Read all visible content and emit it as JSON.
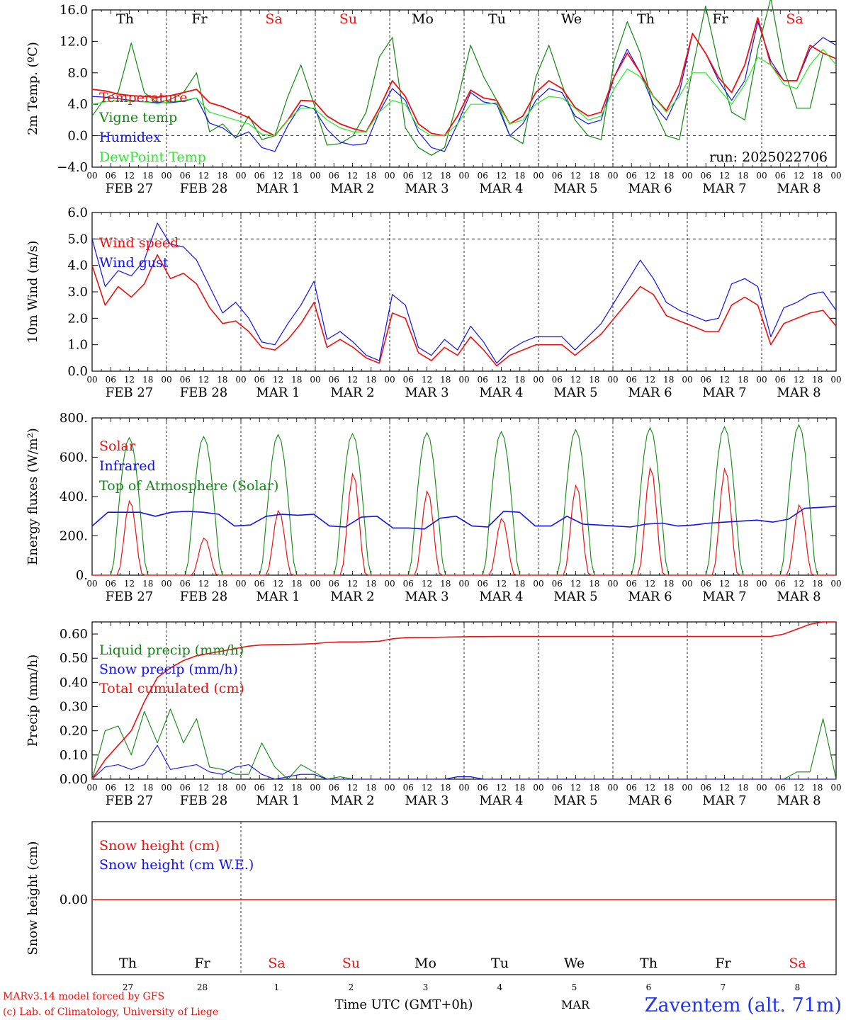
{
  "footer": {
    "model": "MARv3.14 model forced by GFS",
    "credit": "(c) Lab. of Climatology, University of Liege",
    "time_label": "Time UTC (GMT+0h)",
    "month": "MAR",
    "station": "Zaventem (alt. 71m)"
  },
  "colors": {
    "red": "#ee1111",
    "green": "#118811",
    "blue": "#1111ee",
    "lightgreen": "#22ee22"
  },
  "days": {
    "abbr": [
      "Th",
      "Fr",
      "Sa",
      "Su",
      "Mo",
      "Tu",
      "We",
      "Th",
      "Fr",
      "Sa"
    ],
    "weekend": [
      false,
      false,
      true,
      true,
      false,
      false,
      false,
      false,
      false,
      true
    ],
    "dates": [
      "FEB 27",
      "FEB 28",
      "MAR  1",
      "MAR  2",
      "MAR  3",
      "MAR  4",
      "MAR  5",
      "MAR  6",
      "MAR  7",
      "MAR  8"
    ],
    "day_numbers": [
      "27",
      "28",
      "1",
      "2",
      "3",
      "4",
      "5",
      "6",
      "7",
      "8"
    ],
    "hour_ticks": [
      "00",
      "06",
      "12",
      "18"
    ],
    "final_tick": "00"
  },
  "chart_data": [
    {
      "type": "line",
      "ylabel": "2m Temp. (ºC)",
      "ylim": [
        -4,
        16
      ],
      "y_ticks": [
        "−4.0",
        "0.0",
        "4.0",
        "8.0",
        "12.0",
        "16.0"
      ],
      "x_unit": "hours since FEB 27 00 UTC (3-hourly)",
      "annotation": "run: 2025022706",
      "series": [
        {
          "name": "Temperature",
          "color": "#ee1111",
          "values": [
            5.9,
            5.7,
            5.3,
            5.1,
            5.0,
            4.9,
            5.1,
            5.5,
            5.9,
            4.2,
            3.7,
            3.0,
            2.3,
            0.8,
            0.0,
            2.0,
            4.5,
            4.4,
            2.5,
            1.5,
            0.9,
            0.5,
            3.5,
            7.0,
            5.0,
            1.5,
            0.3,
            0.0,
            2.5,
            5.8,
            4.8,
            4.5,
            1.5,
            2.5,
            5.5,
            7.0,
            6.0,
            3.6,
            2.5,
            3.0,
            7.5,
            10.5,
            8.0,
            5.0,
            3.2,
            6.5,
            13.0,
            10.5,
            7.4,
            5.5,
            9.0,
            15.0,
            9.0,
            7.0,
            7.0,
            11.5,
            10.5,
            9.8
          ]
        },
        {
          "name": "Vigne temp",
          "color": "#118811",
          "values": [
            2.5,
            4.8,
            5.5,
            11.8,
            5.5,
            4.2,
            4.6,
            5.5,
            8.0,
            0.5,
            1.5,
            -0.3,
            2.5,
            -0.5,
            0.0,
            5.0,
            9.0,
            4.0,
            -1.2,
            -1.0,
            0.0,
            3.0,
            10.0,
            12.5,
            1.0,
            -1.5,
            -2.5,
            -1.5,
            4.5,
            11.5,
            7.5,
            4.5,
            0.0,
            -1.0,
            7.5,
            11.5,
            6.5,
            2.0,
            0.0,
            -0.5,
            9.5,
            14.5,
            10.5,
            3.5,
            0.0,
            -0.5,
            8.5,
            16.5,
            9.0,
            3.0,
            2.0,
            11.0,
            17.5,
            8.5,
            3.5,
            3.5,
            10.5,
            9.8
          ]
        },
        {
          "name": "Humidex",
          "color": "#1111ee",
          "values": [
            5.0,
            4.9,
            4.7,
            4.5,
            4.3,
            4.2,
            4.2,
            4.4,
            4.8,
            1.6,
            1.0,
            -0.2,
            0.5,
            -1.5,
            -2.0,
            1.3,
            3.9,
            3.4,
            0.8,
            -0.8,
            -1.2,
            -1.0,
            3.0,
            6.0,
            4.5,
            0.5,
            -1.5,
            -2.0,
            1.5,
            5.5,
            4.3,
            4.0,
            0.0,
            1.5,
            4.5,
            6.0,
            5.5,
            2.5,
            1.5,
            2.0,
            7.5,
            11.0,
            8.0,
            4.0,
            2.0,
            5.5,
            13.0,
            10.5,
            7.0,
            4.5,
            7.0,
            14.5,
            9.5,
            7.0,
            7.0,
            11.0,
            12.5,
            11.5
          ]
        },
        {
          "name": "DewPoint Temp",
          "color": "#22ee22",
          "values": [
            4.0,
            4.3,
            4.5,
            4.4,
            4.3,
            4.1,
            4.3,
            4.5,
            4.8,
            3.0,
            2.5,
            2.0,
            1.5,
            0.2,
            0.0,
            2.0,
            3.5,
            3.5,
            2.0,
            1.0,
            0.5,
            0.5,
            3.0,
            4.5,
            4.0,
            1.0,
            0.0,
            0.0,
            1.5,
            4.0,
            4.0,
            4.2,
            1.5,
            2.0,
            4.0,
            5.0,
            4.8,
            3.5,
            2.0,
            2.5,
            6.0,
            8.5,
            7.5,
            5.0,
            3.0,
            5.0,
            8.0,
            8.0,
            6.0,
            4.0,
            6.5,
            10.0,
            9.0,
            6.5,
            6.0,
            9.0,
            11.0,
            9.0
          ]
        }
      ]
    },
    {
      "type": "line",
      "ylabel": "10m Wind (m/s)",
      "ylim": [
        0,
        6
      ],
      "y_ticks": [
        "0.0",
        "1.0",
        "2.0",
        "3.0",
        "4.0",
        "5.0",
        "6.0"
      ],
      "series": [
        {
          "name": "Wind speed",
          "color": "#ee1111",
          "values": [
            4.0,
            2.5,
            3.2,
            2.8,
            3.3,
            4.4,
            3.5,
            3.7,
            3.3,
            2.4,
            1.8,
            1.9,
            1.5,
            0.9,
            0.8,
            1.2,
            1.8,
            2.6,
            0.9,
            1.2,
            0.9,
            0.5,
            0.3,
            2.2,
            2.0,
            0.7,
            0.4,
            0.9,
            0.6,
            1.3,
            0.8,
            0.2,
            0.6,
            0.8,
            1.0,
            1.0,
            1.0,
            0.6,
            1.0,
            1.4,
            2.0,
            2.6,
            3.2,
            2.9,
            2.1,
            1.9,
            1.7,
            1.5,
            1.5,
            2.5,
            2.8,
            2.5,
            1.0,
            1.8,
            2.0,
            2.2,
            2.3,
            1.7
          ]
        },
        {
          "name": "Wind gust",
          "color": "#1111ee",
          "values": [
            5.0,
            3.2,
            3.8,
            3.6,
            4.2,
            5.6,
            4.8,
            4.7,
            4.2,
            3.2,
            2.2,
            2.6,
            2.0,
            1.1,
            1.0,
            1.8,
            2.5,
            3.4,
            1.2,
            1.5,
            1.1,
            0.6,
            0.4,
            2.9,
            2.5,
            0.9,
            0.6,
            1.2,
            0.8,
            1.7,
            1.1,
            0.3,
            0.8,
            1.1,
            1.3,
            1.3,
            1.3,
            0.8,
            1.3,
            1.8,
            2.6,
            3.4,
            4.2,
            3.5,
            2.6,
            2.3,
            2.1,
            1.9,
            2.0,
            3.3,
            3.5,
            3.2,
            1.3,
            2.4,
            2.6,
            2.9,
            3.0,
            2.3
          ]
        }
      ]
    },
    {
      "type": "line",
      "ylabel": "Energy fluxes (W/m²)",
      "ylim": [
        0,
        800
      ],
      "y_ticks": [
        "0.",
        "200.",
        "400.",
        "600.",
        "800."
      ],
      "series": [
        {
          "name": "Solar",
          "color": "#ee1111",
          "peaks": [
            380,
            190,
            330,
            520,
            430,
            290,
            460,
            550,
            545,
            360
          ]
        },
        {
          "name": "Infrared",
          "color": "#1111ee",
          "values": [
            250,
            320,
            320,
            320,
            300,
            320,
            325,
            320,
            310,
            250,
            255,
            300,
            310,
            305,
            310,
            250,
            245,
            295,
            300,
            240,
            240,
            235,
            290,
            300,
            250,
            245,
            325,
            320,
            250,
            250,
            300,
            260,
            255,
            250,
            245,
            260,
            265,
            250,
            255,
            265,
            270,
            275,
            280,
            270,
            285,
            340,
            345,
            350
          ]
        },
        {
          "name": "Top of Atmosphere (Solar)",
          "color": "#118811",
          "peaks": [
            700,
            705,
            715,
            720,
            725,
            730,
            740,
            750,
            755,
            765
          ]
        }
      ]
    },
    {
      "type": "line",
      "ylabel": "Precip (mm/h)",
      "ylim": [
        0,
        0.65
      ],
      "y_ticks": [
        "0.00",
        "0.10",
        "0.20",
        "0.30",
        "0.40",
        "0.50",
        "0.60"
      ],
      "series": [
        {
          "name": "Liquid precip (mm/h)",
          "color": "#118811",
          "values": [
            0.0,
            0.2,
            0.22,
            0.1,
            0.28,
            0.15,
            0.29,
            0.15,
            0.25,
            0.05,
            0.04,
            0.02,
            0.02,
            0.15,
            0.05,
            0.0,
            0.06,
            0.03,
            0.0,
            0.01,
            0.0,
            0.0,
            0.0,
            0.0,
            0.0,
            0.0,
            0.0,
            0.0,
            0.01,
            0.01,
            0.0,
            0.0,
            0.0,
            0.0,
            0.0,
            0.0,
            0.0,
            0.0,
            0.0,
            0.0,
            0.0,
            0.0,
            0.0,
            0.0,
            0.0,
            0.0,
            0.0,
            0.0,
            0.0,
            0.0,
            0.0,
            0.0,
            0.0,
            0.0,
            0.03,
            0.03,
            0.25,
            0.0
          ]
        },
        {
          "name": "Snow precip (mm/h)",
          "color": "#1111ee",
          "values": [
            0.0,
            0.05,
            0.06,
            0.04,
            0.06,
            0.14,
            0.04,
            0.05,
            0.06,
            0.03,
            0.02,
            0.05,
            0.06,
            0.02,
            0.0,
            0.01,
            0.02,
            0.02,
            0.0,
            0.0,
            0.0,
            0.0,
            0.0,
            0.0,
            0.0,
            0.0,
            0.0,
            0.0,
            0.01,
            0.01,
            0.0,
            0.0,
            0.0,
            0.0,
            0.0,
            0.0,
            0.0,
            0.0,
            0.0,
            0.0,
            0.0,
            0.0,
            0.0,
            0.0,
            0.0,
            0.0,
            0.0,
            0.0,
            0.0,
            0.0,
            0.0,
            0.0,
            0.0,
            0.0,
            0.0,
            0.0,
            0.0,
            0.0
          ]
        },
        {
          "name": "Total cumulated (cm)",
          "color": "#ee1111",
          "values": [
            0.0,
            0.08,
            0.14,
            0.2,
            0.32,
            0.42,
            0.46,
            0.49,
            0.51,
            0.52,
            0.53,
            0.54,
            0.55,
            0.555,
            0.556,
            0.557,
            0.558,
            0.56,
            0.565,
            0.567,
            0.567,
            0.568,
            0.57,
            0.58,
            0.585,
            0.586,
            0.586,
            0.587,
            0.588,
            0.589,
            0.589,
            0.59,
            0.59,
            0.59,
            0.59,
            0.59,
            0.59,
            0.59,
            0.59,
            0.59,
            0.59,
            0.59,
            0.59,
            0.59,
            0.59,
            0.59,
            0.59,
            0.59,
            0.59,
            0.59,
            0.59,
            0.59,
            0.59,
            0.6,
            0.62,
            0.64,
            0.65,
            0.65
          ]
        }
      ]
    },
    {
      "type": "line",
      "ylabel": "Snow height (cm)",
      "y_ticks": [
        "0.00"
      ],
      "series": [
        {
          "name": "Snow height (cm)",
          "color": "#ee1111",
          "values": [
            0.0,
            0.0
          ]
        },
        {
          "name": "Snow height (cm W.E.)",
          "color": "#1111ee",
          "values": [
            0.0,
            0.0
          ]
        }
      ]
    }
  ]
}
